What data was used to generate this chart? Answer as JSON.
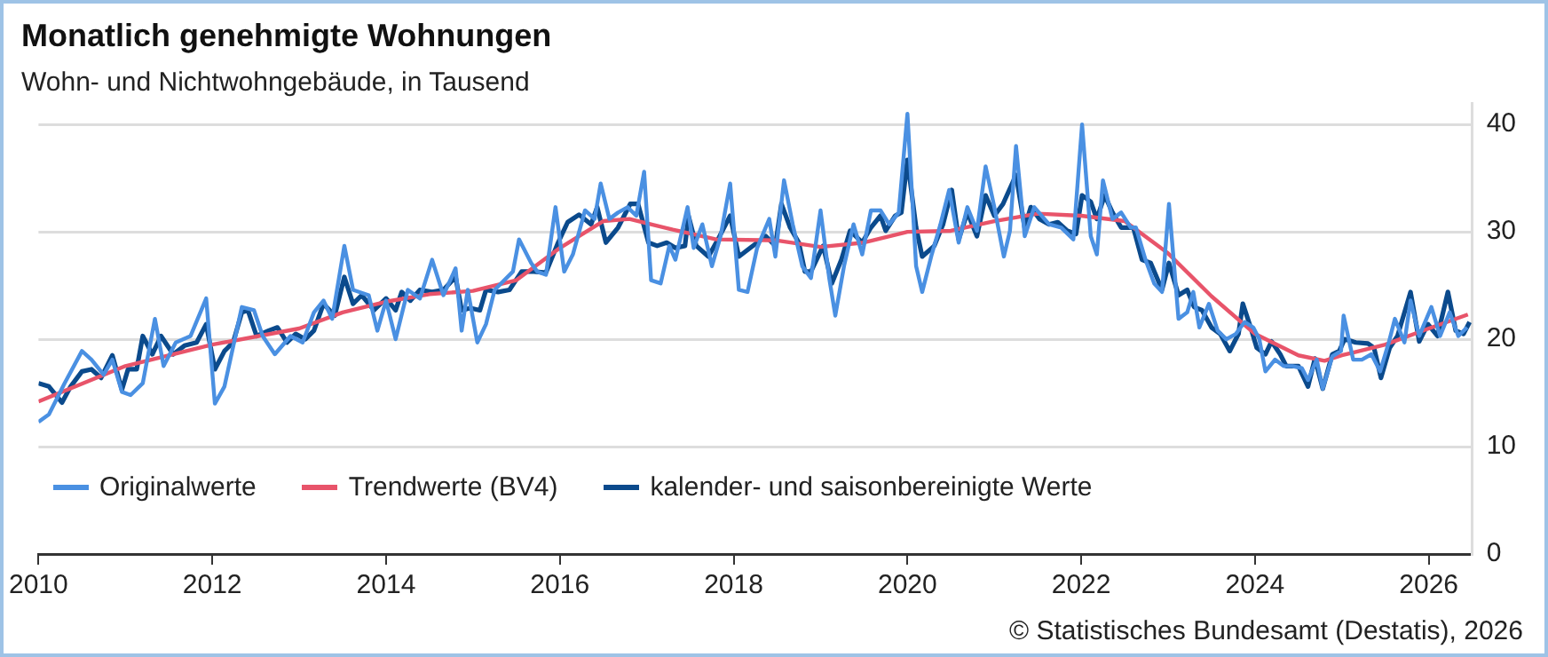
{
  "chart_data": {
    "type": "line",
    "title": "Monatlich genehmigte Wohnungen",
    "subtitle": "Wohn- und Nichtwohngebäude, in Tausend",
    "xlim": [
      2010,
      2026.5
    ],
    "xticks": [
      2010,
      2012,
      2014,
      2016,
      2018,
      2020,
      2022,
      2024,
      2026
    ],
    "ylim": [
      0,
      42
    ],
    "yticks": [
      0,
      10,
      20,
      30,
      40
    ],
    "grid": "y",
    "legend": "bottom left",
    "marker": "none",
    "line_style": "solid",
    "series": [
      {
        "name": "Originalwerte",
        "color": "#4a90e2",
        "x": [
          2010.0,
          2010.12,
          2010.3,
          2010.5,
          2010.61,
          2010.75,
          2010.85,
          2010.96,
          2011.06,
          2011.2,
          2011.34,
          2011.44,
          2011.58,
          2011.75,
          2011.93,
          2012.03,
          2012.14,
          2012.34,
          2012.48,
          2012.58,
          2012.72,
          2012.9,
          2013.04,
          2013.17,
          2013.28,
          2013.38,
          2013.52,
          2013.62,
          2013.8,
          2013.9,
          2014.0,
          2014.11,
          2014.25,
          2014.39,
          2014.53,
          2014.66,
          2014.8,
          2014.87,
          2014.94,
          2015.05,
          2015.15,
          2015.25,
          2015.46,
          2015.53,
          2015.67,
          2015.74,
          2015.84,
          2015.95,
          2016.05,
          2016.15,
          2016.29,
          2016.4,
          2016.47,
          2016.57,
          2016.67,
          2016.78,
          2016.88,
          2016.97,
          2017.05,
          2017.16,
          2017.26,
          2017.33,
          2017.47,
          2017.54,
          2017.64,
          2017.75,
          2017.85,
          2017.96,
          2018.06,
          2018.16,
          2018.27,
          2018.41,
          2018.48,
          2018.58,
          2018.68,
          2018.79,
          2018.89,
          2019.0,
          2019.1,
          2019.17,
          2019.27,
          2019.38,
          2019.48,
          2019.58,
          2019.69,
          2019.79,
          2019.9,
          2020.0,
          2020.1,
          2020.17,
          2020.28,
          2020.38,
          2020.48,
          2020.59,
          2020.69,
          2020.8,
          2020.9,
          2021.0,
          2021.11,
          2021.18,
          2021.25,
          2021.35,
          2021.46,
          2021.63,
          2021.77,
          2021.91,
          2022.01,
          2022.11,
          2022.18,
          2022.25,
          2022.36,
          2022.46,
          2022.57,
          2022.63,
          2022.74,
          2022.84,
          2022.93,
          2023.01,
          2023.12,
          2023.22,
          2023.29,
          2023.36,
          2023.47,
          2023.57,
          2023.67,
          2023.78,
          2023.88,
          2023.98,
          2024.05,
          2024.12,
          2024.23,
          2024.33,
          2024.43,
          2024.54,
          2024.61,
          2024.71,
          2024.78,
          2024.89,
          2024.99,
          2025.02,
          2025.13,
          2025.23,
          2025.34,
          2025.44,
          2025.54,
          2025.61,
          2025.72,
          2025.79,
          2025.89,
          2026.03,
          2026.13,
          2026.24,
          2026.34,
          2026.44
        ],
        "values": [
          12.3,
          13.0,
          15.9,
          18.9,
          18.1,
          16.7,
          18.1,
          15.1,
          14.8,
          15.9,
          21.9,
          17.5,
          19.7,
          20.3,
          23.8,
          14.0,
          15.6,
          23.0,
          22.7,
          20.3,
          18.6,
          20.3,
          19.7,
          22.5,
          23.6,
          21.9,
          28.7,
          24.6,
          24.1,
          20.8,
          23.6,
          20.0,
          24.6,
          23.8,
          27.4,
          24.1,
          26.6,
          20.8,
          24.6,
          19.7,
          21.4,
          24.6,
          26.3,
          29.3,
          27.1,
          26.3,
          26.0,
          32.3,
          26.3,
          27.9,
          32.0,
          31.2,
          34.5,
          31.2,
          31.8,
          32.3,
          31.5,
          35.6,
          25.5,
          25.2,
          28.7,
          27.4,
          32.3,
          28.5,
          30.7,
          26.8,
          29.6,
          34.5,
          24.6,
          24.4,
          28.5,
          31.2,
          27.7,
          34.8,
          30.7,
          26.8,
          25.7,
          32.0,
          25.7,
          22.2,
          26.8,
          30.7,
          27.9,
          32.0,
          32.0,
          30.7,
          31.8,
          41.0,
          26.8,
          24.4,
          27.9,
          30.7,
          33.9,
          29.0,
          32.3,
          30.1,
          36.1,
          32.3,
          27.7,
          30.1,
          38.0,
          29.6,
          32.3,
          30.7,
          30.4,
          29.3,
          40.0,
          29.6,
          27.9,
          34.8,
          31.2,
          31.8,
          30.4,
          30.4,
          27.4,
          25.2,
          24.4,
          32.6,
          21.9,
          22.5,
          24.4,
          21.1,
          23.3,
          20.8,
          20.0,
          20.5,
          21.6,
          21.1,
          20.0,
          17.0,
          18.1,
          17.5,
          17.5,
          17.3,
          16.2,
          18.1,
          15.4,
          18.4,
          18.9,
          22.2,
          18.1,
          18.1,
          18.6,
          17.0,
          19.7,
          21.9,
          19.7,
          23.6,
          20.3,
          23.0,
          20.3,
          22.5,
          20.3,
          21.1
        ]
      },
      {
        "name": "Trendwerte (BV4)",
        "color": "#e8546a",
        "x": [
          2010.0,
          2011.0,
          2012.0,
          2013.0,
          2013.5,
          2014.0,
          2014.5,
          2015.0,
          2015.5,
          2016.0,
          2016.5,
          2016.8,
          2017.3,
          2017.8,
          2018.5,
          2019.0,
          2019.5,
          2020.0,
          2020.5,
          2021.0,
          2021.5,
          2022.0,
          2022.5,
          2023.0,
          2023.5,
          2024.0,
          2024.5,
          2024.8,
          2025.0,
          2025.5,
          2026.0,
          2026.45
        ],
        "values": [
          14.2,
          17.5,
          19.5,
          21.0,
          22.5,
          23.5,
          24.2,
          24.5,
          25.5,
          28.5,
          31.0,
          31.2,
          30.2,
          29.3,
          29.2,
          28.6,
          29.0,
          30.0,
          30.1,
          31.0,
          31.7,
          31.5,
          31.0,
          28.0,
          24.0,
          20.5,
          18.5,
          18.0,
          18.5,
          19.5,
          21.0,
          22.3
        ]
      },
      {
        "name": "kalender- und saisonbereinigte Werte",
        "color": "#0b4a8c",
        "x": [
          2010.0,
          2010.12,
          2010.27,
          2010.37,
          2010.5,
          2010.61,
          2010.72,
          2010.85,
          2010.96,
          2011.03,
          2011.13,
          2011.2,
          2011.31,
          2011.41,
          2011.55,
          2011.68,
          2011.82,
          2011.93,
          2012.03,
          2012.14,
          2012.24,
          2012.34,
          2012.41,
          2012.51,
          2012.65,
          2012.75,
          2012.86,
          2012.96,
          2013.07,
          2013.17,
          2013.28,
          2013.41,
          2013.52,
          2013.62,
          2013.72,
          2013.86,
          2014.0,
          2014.11,
          2014.18,
          2014.28,
          2014.39,
          2014.53,
          2014.66,
          2014.8,
          2014.87,
          2014.97,
          2015.08,
          2015.15,
          2015.29,
          2015.42,
          2015.56,
          2015.7,
          2015.84,
          2015.98,
          2016.09,
          2016.22,
          2016.36,
          2016.43,
          2016.53,
          2016.67,
          2016.81,
          2016.9,
          2017.02,
          2017.12,
          2017.23,
          2017.33,
          2017.44,
          2017.48,
          2017.57,
          2017.71,
          2017.82,
          2017.96,
          2018.06,
          2018.19,
          2018.37,
          2018.48,
          2018.55,
          2018.65,
          2018.75,
          2018.82,
          2018.89,
          2019.03,
          2019.13,
          2019.24,
          2019.34,
          2019.48,
          2019.58,
          2019.69,
          2019.75,
          2019.86,
          2019.93,
          2020.0,
          2020.1,
          2020.17,
          2020.31,
          2020.41,
          2020.51,
          2020.59,
          2020.69,
          2020.8,
          2020.9,
          2021.0,
          2021.1,
          2021.25,
          2021.35,
          2021.42,
          2021.52,
          2021.63,
          2021.73,
          2021.84,
          2021.94,
          2022.01,
          2022.11,
          2022.18,
          2022.27,
          2022.36,
          2022.46,
          2022.6,
          2022.7,
          2022.8,
          2022.93,
          2023.01,
          2023.12,
          2023.22,
          2023.3,
          2023.39,
          2023.5,
          2023.6,
          2023.71,
          2023.81,
          2023.86,
          2023.95,
          2024.02,
          2024.12,
          2024.19,
          2024.29,
          2024.36,
          2024.5,
          2024.61,
          2024.69,
          2024.78,
          2024.89,
          2024.97,
          2025.03,
          2025.16,
          2025.3,
          2025.37,
          2025.45,
          2025.55,
          2025.64,
          2025.79,
          2025.89,
          2025.99,
          2026.1,
          2026.22,
          2026.31,
          2026.4,
          2026.47
        ],
        "values": [
          15.9,
          15.6,
          14.1,
          15.6,
          17.0,
          17.2,
          16.4,
          18.5,
          15.3,
          17.2,
          17.2,
          20.3,
          18.6,
          20.3,
          18.6,
          19.4,
          19.7,
          21.4,
          17.2,
          18.9,
          19.7,
          22.5,
          22.7,
          20.3,
          20.8,
          21.1,
          19.7,
          20.5,
          20.0,
          20.8,
          23.3,
          22.2,
          25.8,
          23.3,
          24.1,
          22.7,
          23.8,
          22.7,
          24.4,
          23.6,
          24.6,
          24.4,
          24.6,
          25.8,
          22.7,
          22.9,
          22.7,
          24.6,
          24.4,
          24.6,
          26.3,
          26.3,
          26.2,
          29.0,
          30.9,
          31.6,
          30.7,
          32.3,
          29.0,
          30.4,
          32.6,
          32.6,
          29.0,
          28.7,
          29.0,
          28.5,
          28.7,
          31.5,
          28.7,
          27.7,
          29.3,
          31.5,
          27.7,
          28.5,
          29.6,
          28.7,
          32.6,
          30.4,
          29.0,
          26.3,
          26.3,
          28.7,
          25.2,
          27.4,
          30.1,
          29.0,
          30.4,
          31.5,
          30.1,
          31.5,
          31.8,
          36.7,
          30.4,
          27.7,
          28.7,
          30.7,
          33.9,
          29.3,
          31.8,
          29.6,
          33.4,
          31.5,
          32.6,
          35.3,
          30.4,
          32.3,
          31.2,
          30.7,
          30.9,
          30.1,
          29.8,
          33.4,
          32.8,
          31.2,
          33.4,
          31.8,
          30.4,
          30.4,
          27.4,
          27.1,
          24.6,
          27.1,
          24.1,
          24.6,
          23.0,
          22.7,
          21.1,
          20.5,
          18.9,
          20.5,
          23.3,
          21.1,
          19.2,
          18.6,
          19.8,
          18.6,
          17.5,
          17.5,
          15.6,
          18.2,
          15.4,
          18.6,
          18.9,
          20.0,
          19.7,
          19.6,
          19.2,
          16.4,
          19.2,
          20.3,
          24.4,
          19.8,
          21.4,
          20.3,
          24.4,
          20.8,
          20.5,
          21.6
        ]
      }
    ],
    "annotations": [
      "© Statistisches Bundesamt (Destatis), 2026"
    ]
  }
}
